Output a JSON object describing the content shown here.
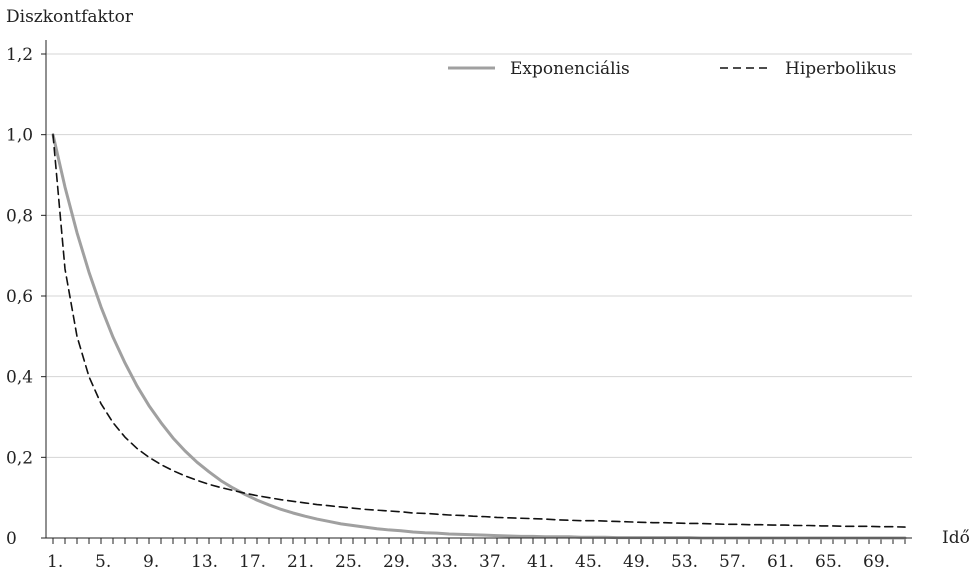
{
  "chart_data": {
    "type": "line",
    "ylabel": "Diszkontfaktor",
    "xlabel": "Idő",
    "ylim": [
      0,
      1.2
    ],
    "yticks": [
      "0",
      "0,2",
      "0,4",
      "0,6",
      "0,8",
      "1,0",
      "1,2"
    ],
    "x": [
      1,
      2,
      3,
      4,
      5,
      6,
      7,
      8,
      9,
      10,
      11,
      12,
      13,
      14,
      15,
      16,
      17,
      18,
      19,
      20,
      21,
      22,
      23,
      24,
      25,
      26,
      27,
      28,
      29,
      30,
      31,
      32,
      33,
      34,
      35,
      36,
      37,
      38,
      39,
      40,
      41,
      42,
      43,
      44,
      45,
      46,
      47,
      48,
      49,
      50,
      51,
      52,
      53,
      54,
      55,
      56,
      57,
      58,
      59,
      60,
      61,
      62,
      63,
      64,
      65,
      66,
      67,
      68,
      69,
      70,
      71,
      72
    ],
    "xtick_labels": [
      "1.",
      "5.",
      "9.",
      "13.",
      "17.",
      "21.",
      "25.",
      "29.",
      "33.",
      "37.",
      "41.",
      "45.",
      "49.",
      "53.",
      "57.",
      "61.",
      "65.",
      "69."
    ],
    "xtick_values": [
      1,
      5,
      9,
      13,
      17,
      21,
      25,
      29,
      33,
      37,
      41,
      45,
      49,
      53,
      57,
      61,
      65,
      69
    ],
    "legend_position": "top-right",
    "grid": "horizontal",
    "series": [
      {
        "name": "Exponenciális",
        "color": "#a0a0a0",
        "style": "solid",
        "values": [
          1.0,
          0.87,
          0.757,
          0.659,
          0.573,
          0.498,
          0.434,
          0.377,
          0.328,
          0.286,
          0.248,
          0.216,
          0.188,
          0.164,
          0.142,
          0.124,
          0.108,
          0.094,
          0.082,
          0.071,
          0.062,
          0.054,
          0.047,
          0.041,
          0.035,
          0.031,
          0.027,
          0.023,
          0.02,
          0.018,
          0.015,
          0.013,
          0.012,
          0.01,
          0.009,
          0.008,
          0.007,
          0.006,
          0.005,
          0.004,
          0.004,
          0.003,
          0.003,
          0.003,
          0.002,
          0.002,
          0.002,
          0.001,
          0.001,
          0.001,
          0.001,
          0.001,
          0.001,
          0.001,
          0.0,
          0.0,
          0.0,
          0.0,
          0.0,
          0.0,
          0.0,
          0.0,
          0.0,
          0.0,
          0.0,
          0.0,
          0.0,
          0.0,
          0.0,
          0.0,
          0.0,
          0.0
        ]
      },
      {
        "name": "Hiperbolikus",
        "color": "#111111",
        "style": "dashed",
        "values": [
          1.0,
          0.667,
          0.5,
          0.4,
          0.333,
          0.286,
          0.25,
          0.222,
          0.2,
          0.182,
          0.167,
          0.154,
          0.143,
          0.133,
          0.125,
          0.118,
          0.111,
          0.105,
          0.1,
          0.095,
          0.091,
          0.087,
          0.083,
          0.08,
          0.077,
          0.074,
          0.071,
          0.069,
          0.067,
          0.065,
          0.062,
          0.061,
          0.059,
          0.057,
          0.056,
          0.054,
          0.053,
          0.051,
          0.05,
          0.049,
          0.048,
          0.047,
          0.045,
          0.044,
          0.043,
          0.043,
          0.042,
          0.041,
          0.04,
          0.039,
          0.038,
          0.038,
          0.037,
          0.036,
          0.036,
          0.035,
          0.034,
          0.034,
          0.033,
          0.033,
          0.032,
          0.032,
          0.031,
          0.031,
          0.03,
          0.03,
          0.029,
          0.029,
          0.029,
          0.028,
          0.028,
          0.027
        ]
      }
    ]
  }
}
